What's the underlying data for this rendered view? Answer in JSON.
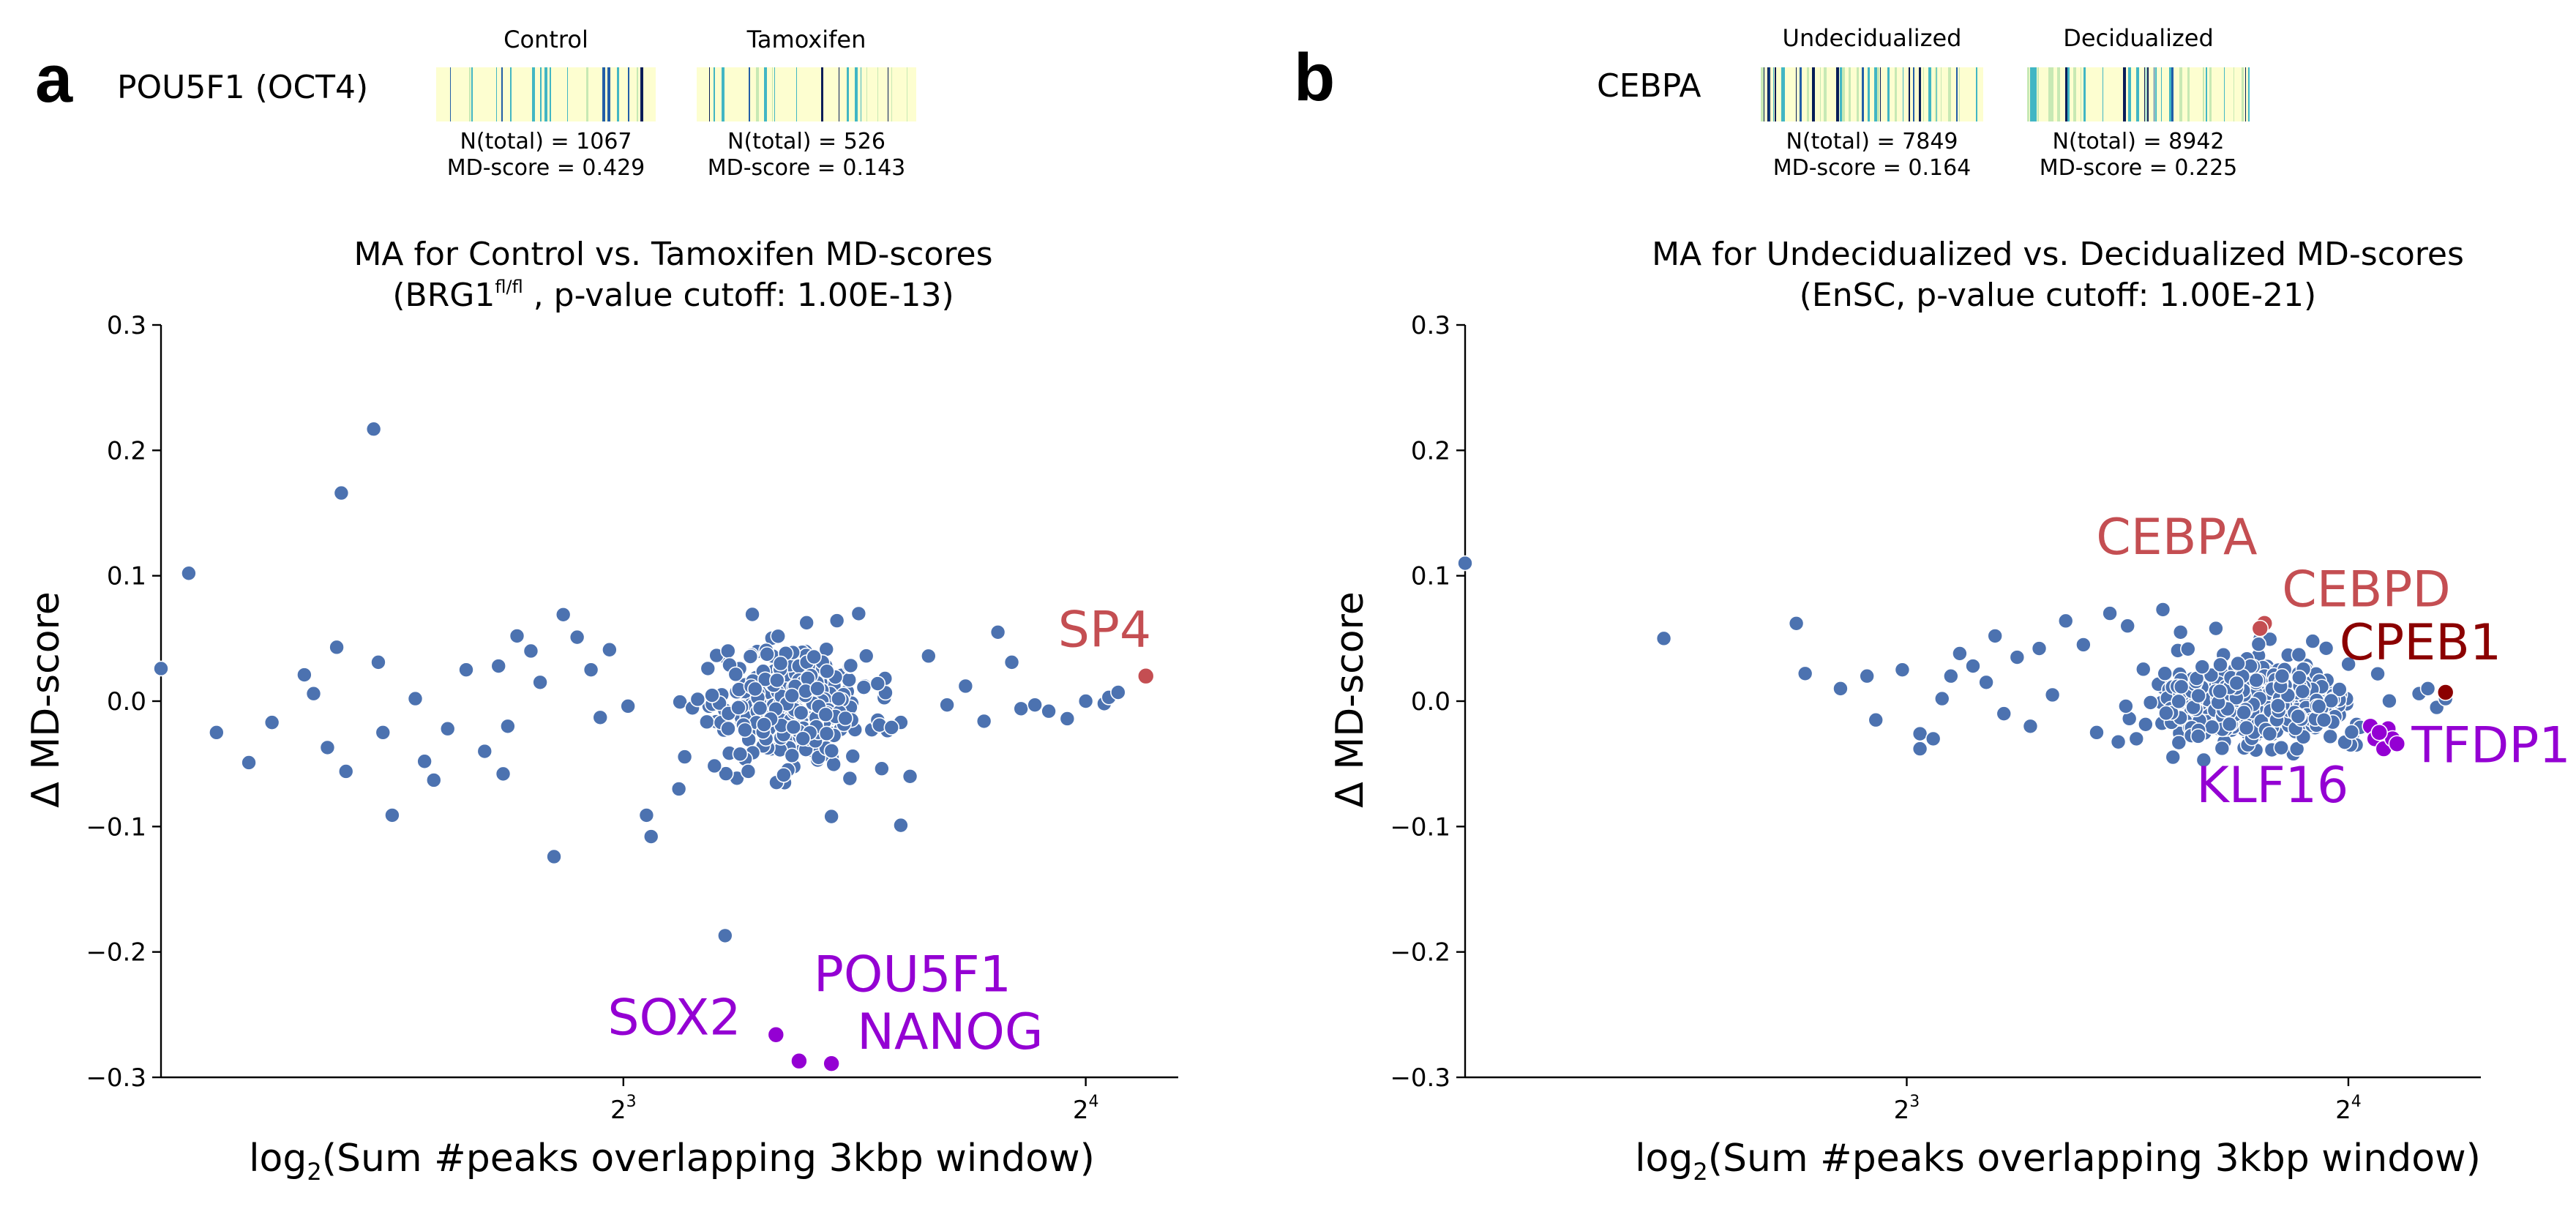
{
  "panels": [
    {
      "letter": "a",
      "gene": "POU5F1 (OCT4)",
      "conditions": [
        {
          "label": "Control",
          "n_total": "N(total) = 1067",
          "md_score": "MD-score = 0.429"
        },
        {
          "label": "Tamoxifen",
          "n_total": "N(total) = 526",
          "md_score": "MD-score = 0.143"
        }
      ]
    },
    {
      "letter": "b",
      "gene": "CEBPA",
      "conditions": [
        {
          "label": "Undecidualized",
          "n_total": "N(total) = 7849",
          "md_score": "MD-score = 0.164"
        },
        {
          "label": "Decidualized",
          "n_total": "N(total) = 8942",
          "md_score": "MD-score = 0.225"
        }
      ]
    }
  ],
  "colors": {
    "point": "#4c72b0",
    "point_edge": "#ffffff",
    "up": "#c44e52",
    "up_dark": "#8b0000",
    "down": "#9400d3",
    "heat_base": "#fdfed0",
    "heat_light": "#c7e9b4",
    "heat_mid": "#41b6c4",
    "heat_dark": "#225ea8",
    "heat_darkest": "#081d58"
  },
  "chart_data": [
    {
      "type": "scatter",
      "title_line1": "MA for Control vs. Tamoxifen MD-scores",
      "title_line2_prefix": "(BRG1",
      "title_line2_sup": "fl/fl",
      "title_line2_suffix": " , p-value cutoff: 1.00E-13)",
      "xlabel_prefix": "log",
      "xlabel_sub": "2",
      "xlabel_suffix": "(Sum #peaks overlapping 3kbp window)",
      "ylabel": "Δ MD-score",
      "xlim": [
        2.0,
        4.2
      ],
      "ylim": [
        -0.3,
        0.3
      ],
      "xtick_base": "2",
      "xticks": [
        {
          "value": 3,
          "exp": "3"
        },
        {
          "value": 4,
          "exp": "4"
        }
      ],
      "yticks": [
        {
          "value": 0.3,
          "label": "0.3"
        },
        {
          "value": 0.2,
          "label": "0.2"
        },
        {
          "value": 0.1,
          "label": "0.1"
        },
        {
          "value": 0.0,
          "label": "0.0"
        },
        {
          "value": -0.1,
          "label": "−0.1"
        },
        {
          "value": -0.2,
          "label": "−0.2"
        },
        {
          "value": -0.3,
          "label": "−0.3"
        }
      ],
      "cloud": {
        "xmin": 3.08,
        "xmax": 3.65,
        "ymean": -0.005,
        "yspread": 0.024,
        "n": 300,
        "seed": 7
      },
      "points": [
        [
          2.0,
          0.026
        ],
        [
          2.06,
          0.102
        ],
        [
          2.12,
          -0.025
        ],
        [
          2.19,
          -0.049
        ],
        [
          2.24,
          -0.017
        ],
        [
          2.31,
          0.021
        ],
        [
          2.33,
          0.006
        ],
        [
          2.36,
          -0.037
        ],
        [
          2.38,
          0.043
        ],
        [
          2.39,
          0.166
        ],
        [
          2.4,
          -0.056
        ],
        [
          2.46,
          0.217
        ],
        [
          2.47,
          0.031
        ],
        [
          2.48,
          -0.025
        ],
        [
          2.5,
          -0.091
        ],
        [
          2.55,
          0.002
        ],
        [
          2.57,
          -0.048
        ],
        [
          2.59,
          -0.063
        ],
        [
          2.62,
          -0.022
        ],
        [
          2.66,
          0.025
        ],
        [
          2.7,
          -0.04
        ],
        [
          2.73,
          0.028
        ],
        [
          2.74,
          -0.058
        ],
        [
          2.75,
          -0.02
        ],
        [
          2.77,
          0.052
        ],
        [
          2.8,
          0.04
        ],
        [
          2.82,
          0.015
        ],
        [
          2.85,
          -0.124
        ],
        [
          2.87,
          0.069
        ],
        [
          2.9,
          0.051
        ],
        [
          2.93,
          0.025
        ],
        [
          2.95,
          -0.013
        ],
        [
          2.97,
          0.041
        ],
        [
          3.01,
          -0.004
        ],
        [
          3.05,
          -0.091
        ],
        [
          3.06,
          -0.108
        ],
        [
          3.12,
          -0.07
        ],
        [
          3.22,
          -0.187
        ],
        [
          3.27,
          -0.056
        ],
        [
          3.34,
          0.03
        ],
        [
          3.45,
          -0.092
        ],
        [
          3.52,
          0.011
        ],
        [
          3.6,
          -0.099
        ],
        [
          3.62,
          -0.06
        ],
        [
          3.66,
          0.036
        ],
        [
          3.7,
          -0.003
        ],
        [
          3.74,
          0.012
        ],
        [
          3.78,
          -0.016
        ],
        [
          3.81,
          0.055
        ],
        [
          3.84,
          0.031
        ],
        [
          3.86,
          -0.006
        ],
        [
          3.89,
          -0.003
        ],
        [
          3.92,
          -0.008
        ],
        [
          3.96,
          -0.014
        ],
        [
          4.04,
          -0.002
        ],
        [
          4.05,
          0.003
        ],
        [
          4.07,
          0.007
        ],
        [
          4.0,
          0.0
        ],
        [
          3.55,
          0.014
        ],
        [
          3.58,
          -0.021
        ]
      ],
      "highlights": [
        {
          "label": "SP4",
          "x": 4.13,
          "y": 0.02,
          "color": "up",
          "label_dx": -120,
          "label_dy": -40
        },
        {
          "label": "SOX2",
          "x": 3.33,
          "y": -0.266,
          "color": "down",
          "label_dx": -230,
          "label_dy": 0
        },
        {
          "label": "POU5F1",
          "x": 3.38,
          "y": -0.287,
          "color": "down",
          "label_dx": 20,
          "label_dy": -95
        },
        {
          "label": "NANOG",
          "x": 3.45,
          "y": -0.289,
          "color": "down",
          "label_dx": 35,
          "label_dy": -20
        }
      ]
    },
    {
      "type": "scatter",
      "title_line1": "MA for Undecidualized vs. Decidualized MD-scores",
      "title_line2_prefix": "(EnSC, p-value cutoff: 1.00E-21)",
      "title_line2_sup": "",
      "title_line2_suffix": "",
      "xlabel_prefix": "log",
      "xlabel_sub": "2",
      "xlabel_suffix": "(Sum #peaks overlapping 3kbp window)",
      "ylabel": "Δ MD-score",
      "xlim": [
        2.0,
        4.3
      ],
      "ylim": [
        -0.3,
        0.3
      ],
      "xtick_base": "2",
      "xticks": [
        {
          "value": 3,
          "exp": "3"
        },
        {
          "value": 4,
          "exp": "4"
        }
      ],
      "yticks": [
        {
          "value": 0.3,
          "label": "0.3"
        },
        {
          "value": 0.2,
          "label": "0.2"
        },
        {
          "value": 0.1,
          "label": "0.1"
        },
        {
          "value": 0.0,
          "label": "0.0"
        },
        {
          "value": -0.1,
          "label": "−0.1"
        },
        {
          "value": -0.2,
          "label": "−0.2"
        },
        {
          "value": -0.3,
          "label": "−0.3"
        }
      ],
      "cloud": {
        "xmin": 3.45,
        "xmax": 4.12,
        "ymean": 0.0,
        "yspread": 0.017,
        "n": 420,
        "seed": 11
      },
      "points": [
        [
          2.0,
          0.11
        ],
        [
          2.45,
          0.05
        ],
        [
          2.75,
          0.062
        ],
        [
          2.77,
          0.022
        ],
        [
          2.85,
          0.01
        ],
        [
          2.91,
          0.02
        ],
        [
          2.93,
          -0.015
        ],
        [
          2.99,
          0.025
        ],
        [
          3.03,
          -0.026
        ],
        [
          3.03,
          -0.038
        ],
        [
          3.06,
          -0.03
        ],
        [
          3.08,
          0.002
        ],
        [
          3.1,
          0.02
        ],
        [
          3.12,
          0.038
        ],
        [
          3.15,
          0.028
        ],
        [
          3.18,
          0.015
        ],
        [
          3.2,
          0.052
        ],
        [
          3.22,
          -0.01
        ],
        [
          3.25,
          0.035
        ],
        [
          3.28,
          -0.02
        ],
        [
          3.3,
          0.042
        ],
        [
          3.33,
          0.005
        ],
        [
          3.36,
          0.064
        ],
        [
          3.4,
          0.045
        ],
        [
          3.43,
          -0.025
        ],
        [
          3.46,
          0.07
        ],
        [
          3.5,
          0.06
        ],
        [
          3.52,
          -0.03
        ],
        [
          3.58,
          0.073
        ],
        [
          3.62,
          0.055
        ],
        [
          3.66,
          -0.028
        ],
        [
          3.7,
          0.058
        ],
        [
          3.75,
          0.03
        ],
        [
          3.85,
          0.02
        ],
        [
          4.16,
          0.006
        ],
        [
          4.18,
          0.01
        ],
        [
          4.2,
          -0.005
        ],
        [
          4.22,
          0.002
        ]
      ],
      "highlights": [
        {
          "label": "CEBPA",
          "x": 3.81,
          "y": 0.062,
          "color": "up",
          "label_dx": -230,
          "label_dy": -95
        },
        {
          "label": "CEBPD",
          "x": 3.8,
          "y": 0.058,
          "color": "up",
          "label_dx": 30,
          "label_dy": -30
        },
        {
          "label": "CPEB1",
          "x": 4.22,
          "y": 0.007,
          "color": "up_dark",
          "label_dx": -145,
          "label_dy": -45
        },
        {
          "label": "TFDP1",
          "x": 4.11,
          "y": -0.034,
          "color": "down",
          "label_dx": 20,
          "label_dy": 25
        },
        {
          "label": "KLF16",
          "x": 4.07,
          "y": -0.025,
          "color": "down",
          "label_dx": -250,
          "label_dy": 95
        }
      ],
      "extra_down": [
        [
          4.05,
          -0.02
        ],
        [
          4.06,
          -0.03
        ],
        [
          4.08,
          -0.038
        ],
        [
          4.09,
          -0.022
        ],
        [
          4.1,
          -0.03
        ]
      ]
    }
  ]
}
